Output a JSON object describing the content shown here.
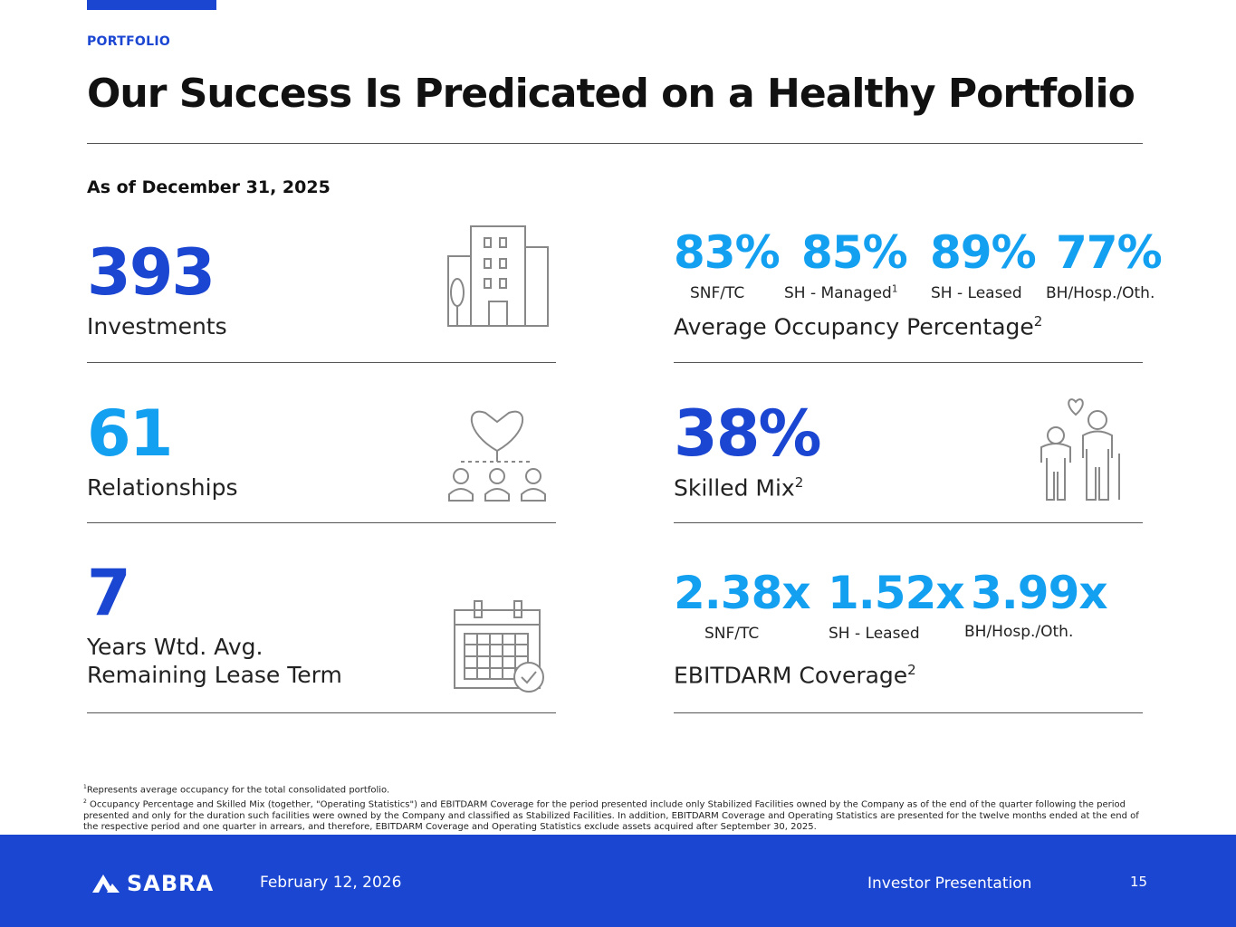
{
  "header": {
    "section": "PORTFOLIO",
    "title": "Our Success Is Predicated on a Healthy Portfolio",
    "as_of": "As of December 31, 2025"
  },
  "left": [
    {
      "value": "393",
      "label": "Investments",
      "icon": "building-icon"
    },
    {
      "value": "61",
      "label": "Relationships",
      "icon": "handshake-network-icon"
    },
    {
      "value": "7",
      "label_line1": "Years Wtd. Avg.",
      "label_line2": "Remaining Lease Term",
      "icon": "calendar-check-icon"
    }
  ],
  "occupancy": {
    "items": [
      {
        "value": "83%",
        "label": "SNF/TC"
      },
      {
        "value": "85%",
        "label": "SH - Managed",
        "sup": "1"
      },
      {
        "value": "89%",
        "label": "SH - Leased"
      },
      {
        "value": "77%",
        "label": "BH/Hosp./Oth."
      }
    ],
    "label": "Average Occupancy Percentage",
    "sup": "2"
  },
  "skilled": {
    "value": "38%",
    "label": "Skilled Mix",
    "sup": "2",
    "icon": "elderly-couple-icon"
  },
  "coverage": {
    "items": [
      {
        "value": "2.38x",
        "label": "SNF/TC"
      },
      {
        "value": "1.52x",
        "label": "SH - Leased"
      },
      {
        "value": "3.99x",
        "label": "BH/Hosp./Oth."
      }
    ],
    "label": "EBITDARM Coverage",
    "sup": "2"
  },
  "footnotes": [
    {
      "sup": "1",
      "text": "Represents average occupancy for the total consolidated portfolio."
    },
    {
      "sup": "2",
      "text": "Occupancy Percentage and Skilled Mix (together, \"Operating Statistics\") and EBITDARM Coverage for the period presented include only Stabilized Facilities owned by the Company as of the end of the quarter following the period presented and only for the duration such facilities were owned by the Company and classified as Stabilized Facilities. In addition, EBITDARM Coverage and Operating Statistics are presented for the twelve months ended at the end of the respective period and one quarter in arrears, and therefore, EBITDARM Coverage and Operating Statistics exclude assets acquired after September 30, 2025."
    }
  ],
  "footer": {
    "logo": "SABRA",
    "date": "February 12, 2026",
    "presentation": "Investor Presentation",
    "page": "15"
  },
  "colors": {
    "dark_blue": "#1b46d2",
    "light_blue": "#14a0f0"
  }
}
